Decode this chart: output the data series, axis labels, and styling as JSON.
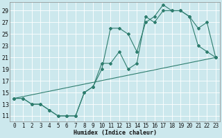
{
  "xlabel": "Humidex (Indice chaleur)",
  "bg_color": "#cce8ed",
  "grid_color": "#ffffff",
  "line_color": "#2e7d6e",
  "marker": "D",
  "marker_size": 2,
  "line_width": 0.8,
  "xlim": [
    -0.5,
    23.5
  ],
  "ylim": [
    10,
    30.5
  ],
  "xticks": [
    0,
    1,
    2,
    3,
    4,
    5,
    6,
    7,
    8,
    9,
    10,
    11,
    12,
    13,
    14,
    15,
    16,
    17,
    18,
    19,
    20,
    21,
    22,
    23
  ],
  "yticks": [
    11,
    13,
    15,
    17,
    19,
    21,
    23,
    25,
    27,
    29
  ],
  "series1_x": [
    0,
    1,
    2,
    3,
    4,
    5,
    6,
    7,
    8,
    9,
    10,
    11,
    12,
    13,
    14,
    15,
    16,
    17,
    18,
    19,
    20,
    21,
    22,
    23
  ],
  "series1_y": [
    14,
    14,
    13,
    13,
    12,
    11,
    11,
    11,
    15,
    16,
    19,
    26,
    26,
    25,
    22,
    27,
    28,
    30,
    29,
    29,
    28,
    23,
    22,
    21
  ],
  "series2_x": [
    0,
    1,
    2,
    3,
    4,
    5,
    6,
    7,
    8,
    9,
    10,
    11,
    12,
    13,
    14,
    15,
    16,
    17,
    18,
    19,
    20,
    21,
    22,
    23
  ],
  "series2_y": [
    14,
    14,
    13,
    13,
    12,
    11,
    11,
    11,
    15,
    16,
    20,
    20,
    22,
    19,
    20,
    28,
    27,
    29,
    29,
    29,
    28,
    26,
    27,
    21
  ],
  "series3_x": [
    0,
    23
  ],
  "series3_y": [
    14,
    21
  ]
}
